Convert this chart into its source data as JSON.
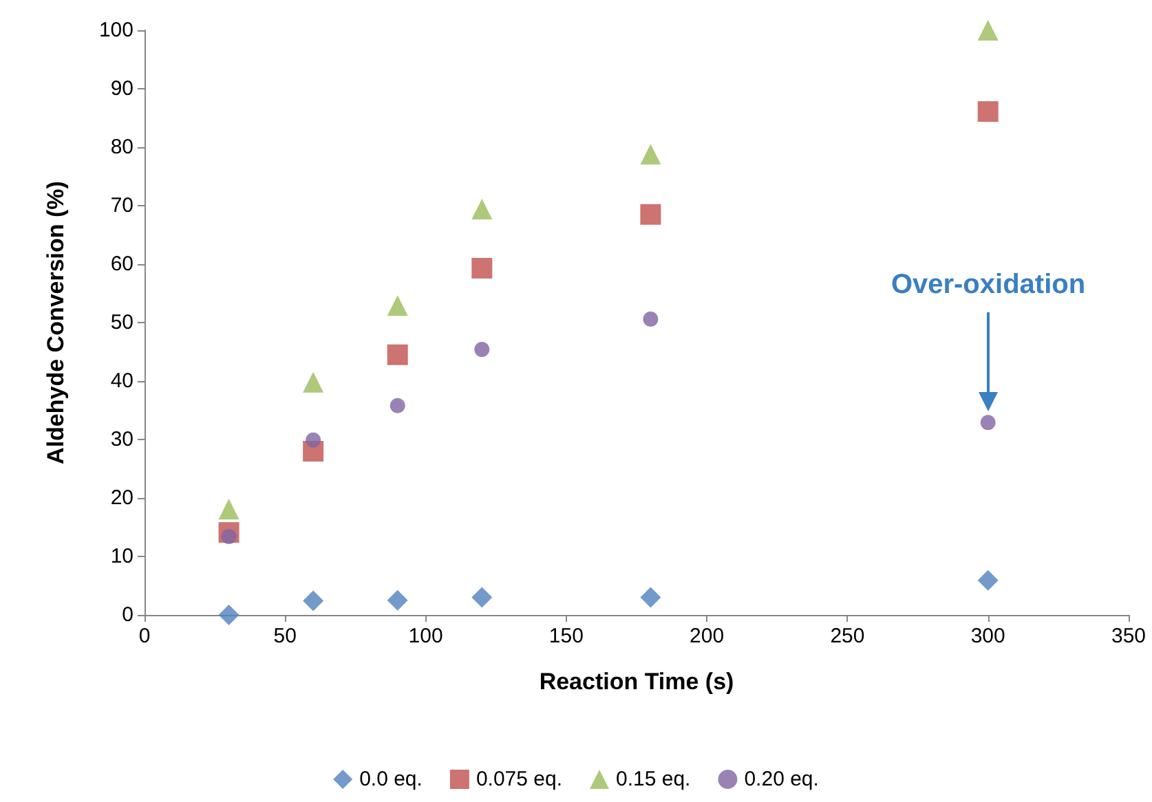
{
  "chart_data": {
    "type": "scatter",
    "xlabel": "Reaction Time (s)",
    "ylabel": "Aldehyde Conversion (%)",
    "x": [
      30,
      60,
      90,
      120,
      180,
      300
    ],
    "series": [
      {
        "name": "0.0 eq.",
        "color": "#4f81bd",
        "marker": "diamond",
        "values": [
          0,
          2.4,
          2.5,
          3,
          3,
          5.9
        ]
      },
      {
        "name": "0.075 eq.",
        "color": "#c0504d",
        "marker": "square",
        "values": [
          14.1,
          28,
          44.5,
          59.3,
          68.5,
          86.1
        ]
      },
      {
        "name": "0.15 eq.",
        "color": "#9bbb59",
        "marker": "triangle",
        "values": [
          18.1,
          39.8,
          52.9,
          69.4,
          78.8,
          100
        ]
      },
      {
        "name": "0.20 eq.",
        "color": "#8064a2",
        "marker": "circle",
        "values": [
          13.4,
          29.9,
          35.8,
          45.4,
          50.6,
          32.9
        ]
      }
    ],
    "xlim": [
      0,
      350
    ],
    "xticks": [
      0,
      50,
      100,
      150,
      200,
      250,
      300,
      350
    ],
    "ylim": [
      0,
      100
    ],
    "yticks": [
      0,
      10,
      20,
      30,
      40,
      50,
      60,
      70,
      80,
      90,
      100
    ],
    "grid": false,
    "legend": "bottom",
    "annotations": [
      "Over-oxidation"
    ]
  }
}
